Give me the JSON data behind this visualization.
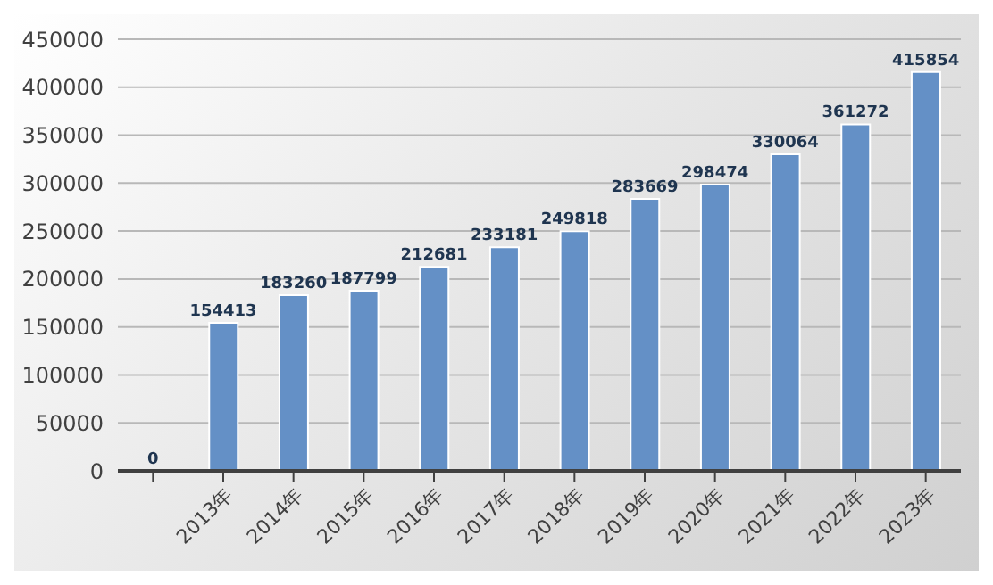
{
  "chart_data": {
    "type": "bar",
    "categories": [
      null,
      "2013年",
      "2014年",
      "2015年",
      "2016年",
      "2017年",
      "2018年",
      "2019年",
      "2020年",
      "2021年",
      "2022年",
      "2023年"
    ],
    "values": [
      0,
      154413,
      183260,
      187799,
      212681,
      233181,
      249818,
      283669,
      298474,
      330064,
      361272,
      415854
    ],
    "color": "#6490c6",
    "ylim": [
      0,
      450000
    ],
    "yticks": [
      0,
      50000,
      100000,
      150000,
      200000,
      250000,
      300000,
      350000,
      400000,
      450000
    ],
    "grid": "y",
    "data_labels": true
  }
}
